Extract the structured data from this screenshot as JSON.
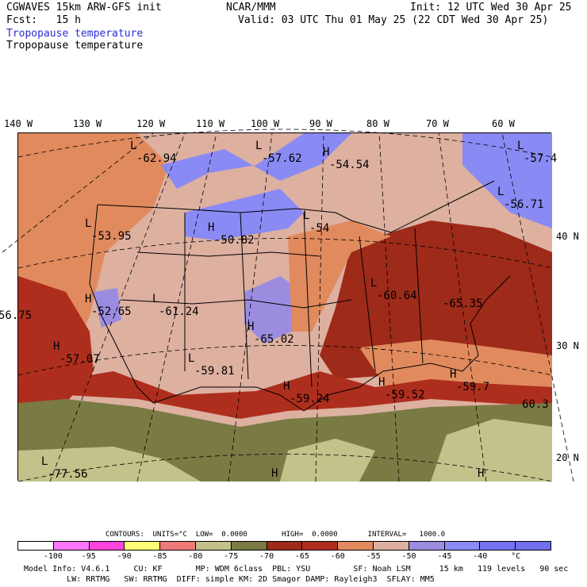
{
  "header": {
    "model": "CGWAVES 15km ARW-GFS init",
    "org": "NCAR/MMM",
    "init": "Init: 12 UTC Wed 30 Apr 25",
    "fcst": "Fcst:   15 h",
    "valid": "Valid: 03 UTC Thu 01 May 25 (22 CDT Wed 30 Apr 25)",
    "field_title_blue": "Tropopause temperature",
    "field_title_black": "Tropopause temperature"
  },
  "lon_labels": [
    "140 W",
    "130 W",
    "120 W",
    "110 W",
    "100 W",
    "90 W",
    "80 W",
    "70 W",
    "60 W"
  ],
  "lat_labels": [
    "40 N",
    "30 N",
    "20 N"
  ],
  "map_labels": [
    {
      "type": "L",
      "value": "-62.94"
    },
    {
      "type": "L",
      "value": "-57.62"
    },
    {
      "type": "H",
      "value": "-54.54"
    },
    {
      "type": "L",
      "value": "-57.4"
    },
    {
      "type": "L",
      "value": "-56.71"
    },
    {
      "type": "L",
      "value": "-53.95"
    },
    {
      "type": "H",
      "value": "-50.82"
    },
    {
      "type": "L",
      "value": "-54"
    },
    {
      "type": "L",
      "value": "-60.64"
    },
    {
      "type": "",
      "value": "-65.35"
    },
    {
      "type": "",
      "value": "56.75"
    },
    {
      "type": "H",
      "value": "-52.65"
    },
    {
      "type": "L",
      "value": "-61.24"
    },
    {
      "type": "H",
      "value": "-65.02"
    },
    {
      "type": "H",
      "value": "-57.07"
    },
    {
      "type": "L",
      "value": "-59.81"
    },
    {
      "type": "H",
      "value": "-59.24"
    },
    {
      "type": "H",
      "value": "-59.52"
    },
    {
      "type": "H",
      "value": "-59.7"
    },
    {
      "type": "",
      "value": "60.3"
    },
    {
      "type": "L",
      "value": "-77.56"
    },
    {
      "type": "H",
      "value": ""
    },
    {
      "type": "H",
      "value": ""
    }
  ],
  "contours": "CONTOURS:  UNITS=°C  LOW=  0.0000        HIGH=  0.0000       INTERVAL=   1000.0",
  "scale": {
    "colors": [
      "#ffffff",
      "#ff77ff",
      "#ff44dd",
      "#ffff77",
      "#f07a78",
      "#c2c28a",
      "#7a7a44",
      "#9e2a1a",
      "#ae2e1e",
      "#e08a5e",
      "#ddb0a0",
      "#9c8ce0",
      "#8a8af4",
      "#7272f2",
      "#7070ee"
    ],
    "ticks": [
      "-100",
      "-95",
      "-90",
      "-85",
      "-80",
      "-75",
      "-70",
      "-65",
      "-60",
      "-55",
      "-50",
      "-45",
      "-40",
      "°C"
    ]
  },
  "info_line1": "Model Info: V4.6.1     CU: KF       MP: WDM 6class  PBL: YSU         SF: Noah LSM      15 km   119 levels   90 sec",
  "info_line2": "         LW: RRTMG   SW: RRTMG  DIFF: simple KM: 2D Smagor DAMP: Rayleigh3  SFLAY: MM5"
}
